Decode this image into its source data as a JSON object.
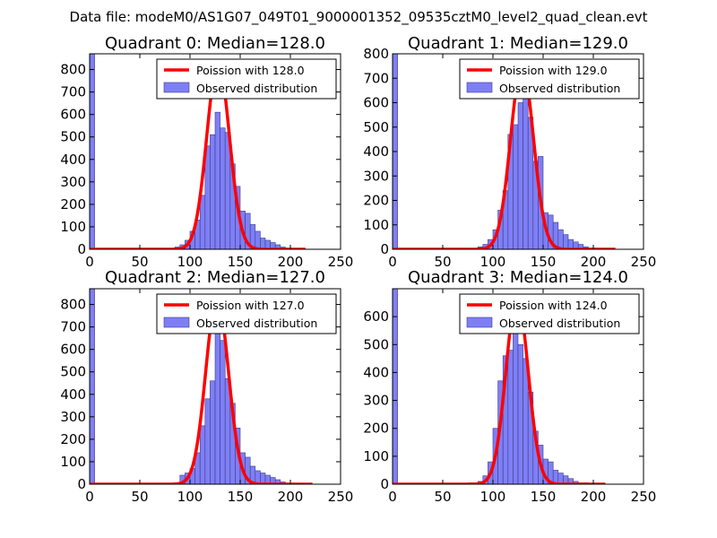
{
  "figure_title": "Data file: modeM0/AS1G07_049T01_9000001352_09535cztM0_level2_quad_clean.evt",
  "colors": {
    "bar_fill": "#7f7ff5",
    "bar_edge": "#3a3a8c",
    "poisson_line": "#ff0000",
    "axes": "#000000"
  },
  "chart_data": [
    {
      "type": "bar",
      "title": "Quadrant 0: Median=128.0",
      "xlim": [
        0,
        250
      ],
      "ylim": [
        0,
        870
      ],
      "xticks": [
        0,
        50,
        100,
        150,
        200,
        250
      ],
      "yticks": [
        0,
        100,
        200,
        300,
        400,
        500,
        600,
        700,
        800
      ],
      "bin_width": 5,
      "legend": {
        "placement": "top-right",
        "line_label": "Poission with 128.0",
        "bar_label": "Observed distribution"
      },
      "poisson_mean": 128.0,
      "poisson_peak": 830,
      "poisson_sigma": 11.3,
      "poisson_x_range": [
        0,
        215
      ],
      "bins": [
        {
          "x": 0,
          "y": 870
        },
        {
          "x": 5,
          "y": 0
        },
        {
          "x": 10,
          "y": 0
        },
        {
          "x": 15,
          "y": 0
        },
        {
          "x": 20,
          "y": 0
        },
        {
          "x": 25,
          "y": 0
        },
        {
          "x": 30,
          "y": 0
        },
        {
          "x": 35,
          "y": 0
        },
        {
          "x": 40,
          "y": 0
        },
        {
          "x": 45,
          "y": 0
        },
        {
          "x": 50,
          "y": 0
        },
        {
          "x": 55,
          "y": 0
        },
        {
          "x": 60,
          "y": 0
        },
        {
          "x": 65,
          "y": 0
        },
        {
          "x": 70,
          "y": 0
        },
        {
          "x": 75,
          "y": 0
        },
        {
          "x": 80,
          "y": 0
        },
        {
          "x": 85,
          "y": 10
        },
        {
          "x": 90,
          "y": 20
        },
        {
          "x": 95,
          "y": 40
        },
        {
          "x": 100,
          "y": 80
        },
        {
          "x": 105,
          "y": 130
        },
        {
          "x": 110,
          "y": 240
        },
        {
          "x": 115,
          "y": 460
        },
        {
          "x": 120,
          "y": 510
        },
        {
          "x": 125,
          "y": 610
        },
        {
          "x": 130,
          "y": 540
        },
        {
          "x": 135,
          "y": 520
        },
        {
          "x": 140,
          "y": 380
        },
        {
          "x": 145,
          "y": 280
        },
        {
          "x": 150,
          "y": 170
        },
        {
          "x": 155,
          "y": 160
        },
        {
          "x": 160,
          "y": 110
        },
        {
          "x": 165,
          "y": 80
        },
        {
          "x": 170,
          "y": 50
        },
        {
          "x": 175,
          "y": 40
        },
        {
          "x": 180,
          "y": 30
        },
        {
          "x": 185,
          "y": 20
        },
        {
          "x": 190,
          "y": 10
        },
        {
          "x": 195,
          "y": 5
        },
        {
          "x": 200,
          "y": 5
        },
        {
          "x": 205,
          "y": 3
        },
        {
          "x": 210,
          "y": 2
        }
      ]
    },
    {
      "type": "bar",
      "title": "Quadrant 1: Median=129.0",
      "xlim": [
        0,
        250
      ],
      "ylim": [
        0,
        800
      ],
      "xticks": [
        0,
        50,
        100,
        150,
        200,
        250
      ],
      "yticks": [
        0,
        100,
        200,
        300,
        400,
        500,
        600,
        700,
        800
      ],
      "bin_width": 5,
      "legend": {
        "placement": "top-right",
        "line_label": "Poission with 129.0",
        "bar_label": "Observed distribution"
      },
      "poisson_mean": 129.0,
      "poisson_peak": 750,
      "poisson_sigma": 11.4,
      "poisson_x_range": [
        0,
        222
      ],
      "bins": [
        {
          "x": 0,
          "y": 800
        },
        {
          "x": 5,
          "y": 0
        },
        {
          "x": 10,
          "y": 0
        },
        {
          "x": 15,
          "y": 0
        },
        {
          "x": 20,
          "y": 0
        },
        {
          "x": 25,
          "y": 0
        },
        {
          "x": 30,
          "y": 0
        },
        {
          "x": 35,
          "y": 0
        },
        {
          "x": 40,
          "y": 0
        },
        {
          "x": 45,
          "y": 0
        },
        {
          "x": 50,
          "y": 0
        },
        {
          "x": 55,
          "y": 0
        },
        {
          "x": 60,
          "y": 0
        },
        {
          "x": 65,
          "y": 0
        },
        {
          "x": 70,
          "y": 0
        },
        {
          "x": 75,
          "y": 0
        },
        {
          "x": 80,
          "y": 0
        },
        {
          "x": 85,
          "y": 10
        },
        {
          "x": 90,
          "y": 20
        },
        {
          "x": 95,
          "y": 40
        },
        {
          "x": 100,
          "y": 80
        },
        {
          "x": 105,
          "y": 160
        },
        {
          "x": 110,
          "y": 240
        },
        {
          "x": 115,
          "y": 470
        },
        {
          "x": 120,
          "y": 510
        },
        {
          "x": 125,
          "y": 600
        },
        {
          "x": 130,
          "y": 620
        },
        {
          "x": 135,
          "y": 540
        },
        {
          "x": 140,
          "y": 360
        },
        {
          "x": 145,
          "y": 380
        },
        {
          "x": 150,
          "y": 150
        },
        {
          "x": 155,
          "y": 140
        },
        {
          "x": 160,
          "y": 110
        },
        {
          "x": 165,
          "y": 80
        },
        {
          "x": 170,
          "y": 60
        },
        {
          "x": 175,
          "y": 40
        },
        {
          "x": 180,
          "y": 30
        },
        {
          "x": 185,
          "y": 20
        },
        {
          "x": 190,
          "y": 10
        },
        {
          "x": 195,
          "y": 5
        },
        {
          "x": 200,
          "y": 5
        },
        {
          "x": 205,
          "y": 3
        },
        {
          "x": 210,
          "y": 2
        }
      ]
    },
    {
      "type": "bar",
      "title": "Quadrant 2: Median=127.0",
      "xlim": [
        0,
        250
      ],
      "ylim": [
        0,
        870
      ],
      "xticks": [
        0,
        50,
        100,
        150,
        200,
        250
      ],
      "yticks": [
        0,
        100,
        200,
        300,
        400,
        500,
        600,
        700,
        800
      ],
      "bin_width": 5,
      "legend": {
        "placement": "top-right",
        "line_label": "Poission with 127.0",
        "bar_label": "Observed distribution"
      },
      "poisson_mean": 127.0,
      "poisson_peak": 830,
      "poisson_sigma": 11.3,
      "poisson_x_range": [
        0,
        222
      ],
      "bins": [
        {
          "x": 0,
          "y": 870
        },
        {
          "x": 5,
          "y": 0
        },
        {
          "x": 10,
          "y": 0
        },
        {
          "x": 15,
          "y": 0
        },
        {
          "x": 20,
          "y": 0
        },
        {
          "x": 25,
          "y": 0
        },
        {
          "x": 30,
          "y": 0
        },
        {
          "x": 35,
          "y": 3
        },
        {
          "x": 40,
          "y": 0
        },
        {
          "x": 45,
          "y": 0
        },
        {
          "x": 50,
          "y": 0
        },
        {
          "x": 55,
          "y": 0
        },
        {
          "x": 60,
          "y": 0
        },
        {
          "x": 65,
          "y": 0
        },
        {
          "x": 70,
          "y": 0
        },
        {
          "x": 75,
          "y": 0
        },
        {
          "x": 80,
          "y": 0
        },
        {
          "x": 85,
          "y": 5
        },
        {
          "x": 90,
          "y": 40
        },
        {
          "x": 95,
          "y": 50
        },
        {
          "x": 100,
          "y": 70
        },
        {
          "x": 105,
          "y": 140
        },
        {
          "x": 110,
          "y": 260
        },
        {
          "x": 115,
          "y": 380
        },
        {
          "x": 120,
          "y": 460
        },
        {
          "x": 125,
          "y": 820
        },
        {
          "x": 130,
          "y": 640
        },
        {
          "x": 135,
          "y": 470
        },
        {
          "x": 140,
          "y": 360
        },
        {
          "x": 145,
          "y": 250
        },
        {
          "x": 150,
          "y": 140
        },
        {
          "x": 155,
          "y": 120
        },
        {
          "x": 160,
          "y": 80
        },
        {
          "x": 165,
          "y": 60
        },
        {
          "x": 170,
          "y": 50
        },
        {
          "x": 175,
          "y": 40
        },
        {
          "x": 180,
          "y": 30
        },
        {
          "x": 185,
          "y": 20
        },
        {
          "x": 190,
          "y": 10
        },
        {
          "x": 195,
          "y": 5
        },
        {
          "x": 200,
          "y": 5
        },
        {
          "x": 205,
          "y": 3
        },
        {
          "x": 210,
          "y": 2
        }
      ]
    },
    {
      "type": "bar",
      "title": "Quadrant 3: Median=124.0",
      "xlim": [
        0,
        250
      ],
      "ylim": [
        0,
        700
      ],
      "xticks": [
        0,
        50,
        100,
        150,
        200,
        250
      ],
      "yticks": [
        0,
        100,
        200,
        300,
        400,
        500,
        600
      ],
      "bin_width": 5,
      "legend": {
        "placement": "top-right",
        "line_label": "Poission with 124.0",
        "bar_label": "Observed distribution"
      },
      "poisson_mean": 124.0,
      "poisson_peak": 670,
      "poisson_sigma": 11.1,
      "poisson_x_range": [
        0,
        212
      ],
      "bins": [
        {
          "x": 0,
          "y": 700
        },
        {
          "x": 5,
          "y": 0
        },
        {
          "x": 10,
          "y": 0
        },
        {
          "x": 15,
          "y": 0
        },
        {
          "x": 20,
          "y": 0
        },
        {
          "x": 25,
          "y": 3
        },
        {
          "x": 30,
          "y": 0
        },
        {
          "x": 35,
          "y": 0
        },
        {
          "x": 40,
          "y": 0
        },
        {
          "x": 45,
          "y": 3
        },
        {
          "x": 50,
          "y": 3
        },
        {
          "x": 55,
          "y": 0
        },
        {
          "x": 60,
          "y": 0
        },
        {
          "x": 65,
          "y": 0
        },
        {
          "x": 70,
          "y": 0
        },
        {
          "x": 75,
          "y": 5
        },
        {
          "x": 80,
          "y": 5
        },
        {
          "x": 85,
          "y": 10
        },
        {
          "x": 90,
          "y": 30
        },
        {
          "x": 95,
          "y": 80
        },
        {
          "x": 100,
          "y": 200
        },
        {
          "x": 105,
          "y": 370
        },
        {
          "x": 110,
          "y": 460
        },
        {
          "x": 115,
          "y": 480
        },
        {
          "x": 120,
          "y": 560
        },
        {
          "x": 125,
          "y": 500
        },
        {
          "x": 130,
          "y": 450
        },
        {
          "x": 135,
          "y": 330
        },
        {
          "x": 140,
          "y": 190
        },
        {
          "x": 145,
          "y": 140
        },
        {
          "x": 150,
          "y": 90
        },
        {
          "x": 155,
          "y": 80
        },
        {
          "x": 160,
          "y": 50
        },
        {
          "x": 165,
          "y": 40
        },
        {
          "x": 170,
          "y": 30
        },
        {
          "x": 175,
          "y": 20
        },
        {
          "x": 180,
          "y": 10
        },
        {
          "x": 185,
          "y": 5
        },
        {
          "x": 190,
          "y": 5
        },
        {
          "x": 195,
          "y": 3
        },
        {
          "x": 200,
          "y": 2
        }
      ]
    }
  ]
}
